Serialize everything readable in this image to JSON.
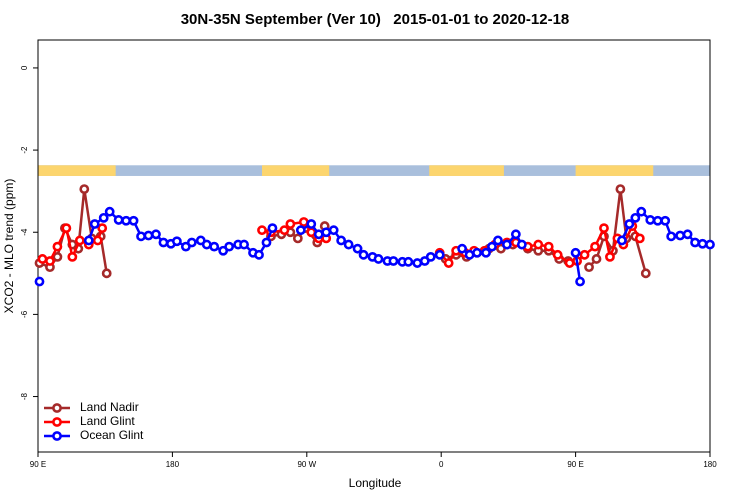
{
  "chart_data": {
    "type": "line",
    "title": "30N-35N September (Ver 10)   2015-01-01 to 2020-12-18",
    "x_label": "Longitude",
    "y_label": "XCO2 - MLO trend (ppm)",
    "xlim": [
      90,
      540
    ],
    "ylim": [
      -9.35,
      0.68
    ],
    "xticks": [
      {
        "value": 90,
        "label": "90 E"
      },
      180,
      {
        "value": 270,
        "label": "90 W"
      },
      {
        "value": 360,
        "label": "0"
      },
      {
        "value": 450,
        "label": "90 E"
      },
      {
        "value": 540,
        "label": "180"
      }
    ],
    "yticks": [
      0,
      -2,
      -4,
      -6,
      -8
    ],
    "legend": "bottomleft",
    "band": {
      "ylim": [
        -2.63,
        -2.37
      ],
      "ocean_color": "#a9bfdc",
      "land_color": "#fcd56e",
      "land": [
        [
          90,
          142
        ],
        [
          240,
          285
        ],
        [
          352,
          402
        ],
        [
          450,
          502
        ]
      ]
    },
    "series": [
      {
        "name": "Land Nadir",
        "color": "#a52a2a",
        "x": [
          91,
          98,
          103,
          108,
          113,
          117,
          121,
          126,
          132,
          136,
          null,
          246,
          253,
          259,
          264,
          269,
          277,
          282,
          null,
          363,
          370,
          377,
          384,
          392,
          400,
          408,
          418,
          425,
          432,
          439,
          445,
          null,
          459,
          464,
          469,
          475,
          480,
          484,
          490,
          497
        ],
        "values": [
          -4.75,
          -4.85,
          -4.6,
          -3.9,
          -4.3,
          -4.4,
          -2.95,
          -4.15,
          -4.1,
          -5.0,
          null,
          -4.1,
          -4.05,
          -4.0,
          -4.15,
          -3.9,
          -4.25,
          -3.85,
          null,
          -4.65,
          -4.55,
          -4.6,
          -4.5,
          -4.4,
          -4.4,
          -4.3,
          -4.4,
          -4.45,
          -4.45,
          -4.65,
          -4.7,
          null,
          -4.85,
          -4.65,
          -4.1,
          -4.45,
          -2.95,
          -4.15,
          -4.1,
          -5.0
        ]
      },
      {
        "name": "Land Glint",
        "color": "#ff0000",
        "x": [
          93,
          98,
          103,
          109,
          113,
          118,
          124,
          130,
          133,
          null,
          240,
          246,
          255,
          259,
          268,
          273,
          278,
          283,
          null,
          359,
          365,
          370,
          376,
          382,
          389,
          396,
          404,
          410,
          418,
          425,
          432,
          438,
          446,
          451,
          456,
          463,
          469,
          473,
          478,
          482,
          488,
          493
        ],
        "values": [
          -4.65,
          -4.7,
          -4.35,
          -3.9,
          -4.6,
          -4.2,
          -4.3,
          -4.2,
          -3.9,
          null,
          -3.95,
          -4.0,
          -3.95,
          -3.8,
          -3.75,
          -4.0,
          -4.15,
          -4.15,
          null,
          -4.5,
          -4.75,
          -4.45,
          -4.5,
          -4.45,
          -4.45,
          -4.3,
          -4.25,
          -4.25,
          -4.35,
          -4.3,
          -4.35,
          -4.55,
          -4.75,
          -4.7,
          -4.55,
          -4.35,
          -3.9,
          -4.6,
          -4.15,
          -4.3,
          -3.85,
          -4.15
        ]
      },
      {
        "name": "Ocean Glint",
        "color": "#0000ff",
        "x": [
          91,
          null,
          124,
          128,
          134,
          138,
          144,
          149,
          154,
          159,
          164,
          169,
          174,
          179,
          183,
          189,
          193,
          199,
          203,
          208,
          214,
          218,
          224,
          228,
          234,
          238,
          243,
          247,
          null,
          266,
          273,
          278,
          283,
          288,
          293,
          298,
          304,
          308,
          314,
          318,
          324,
          328,
          334,
          338,
          344,
          349,
          353,
          359,
          null,
          374,
          379,
          384,
          390,
          394,
          398,
          404,
          410,
          414,
          null,
          450,
          453,
          null,
          481,
          486,
          490,
          494,
          500,
          505,
          510,
          514,
          520,
          525,
          530,
          535,
          540
        ],
        "values": [
          -5.2,
          null,
          -4.2,
          -3.8,
          -3.65,
          -3.5,
          -3.7,
          -3.72,
          -3.72,
          -4.1,
          -4.08,
          -4.05,
          -4.25,
          -4.28,
          -4.22,
          -4.35,
          -4.25,
          -4.2,
          -4.3,
          -4.35,
          -4.45,
          -4.35,
          -4.3,
          -4.3,
          -4.5,
          -4.55,
          -4.25,
          -3.9,
          null,
          -3.95,
          -3.8,
          -4.05,
          -4.0,
          -3.95,
          -4.2,
          -4.3,
          -4.4,
          -4.55,
          -4.6,
          -4.65,
          -4.7,
          -4.7,
          -4.72,
          -4.72,
          -4.75,
          -4.7,
          -4.6,
          -4.55,
          null,
          -4.4,
          -4.55,
          -4.5,
          -4.5,
          -4.35,
          -4.2,
          -4.3,
          -4.05,
          -4.3,
          null,
          -4.5,
          -5.2,
          null,
          -4.2,
          -3.8,
          -3.65,
          -3.5,
          -3.7,
          -3.72,
          -3.72,
          -4.1,
          -4.08,
          -4.05,
          -4.25,
          -4.28,
          -4.3
        ]
      }
    ]
  }
}
